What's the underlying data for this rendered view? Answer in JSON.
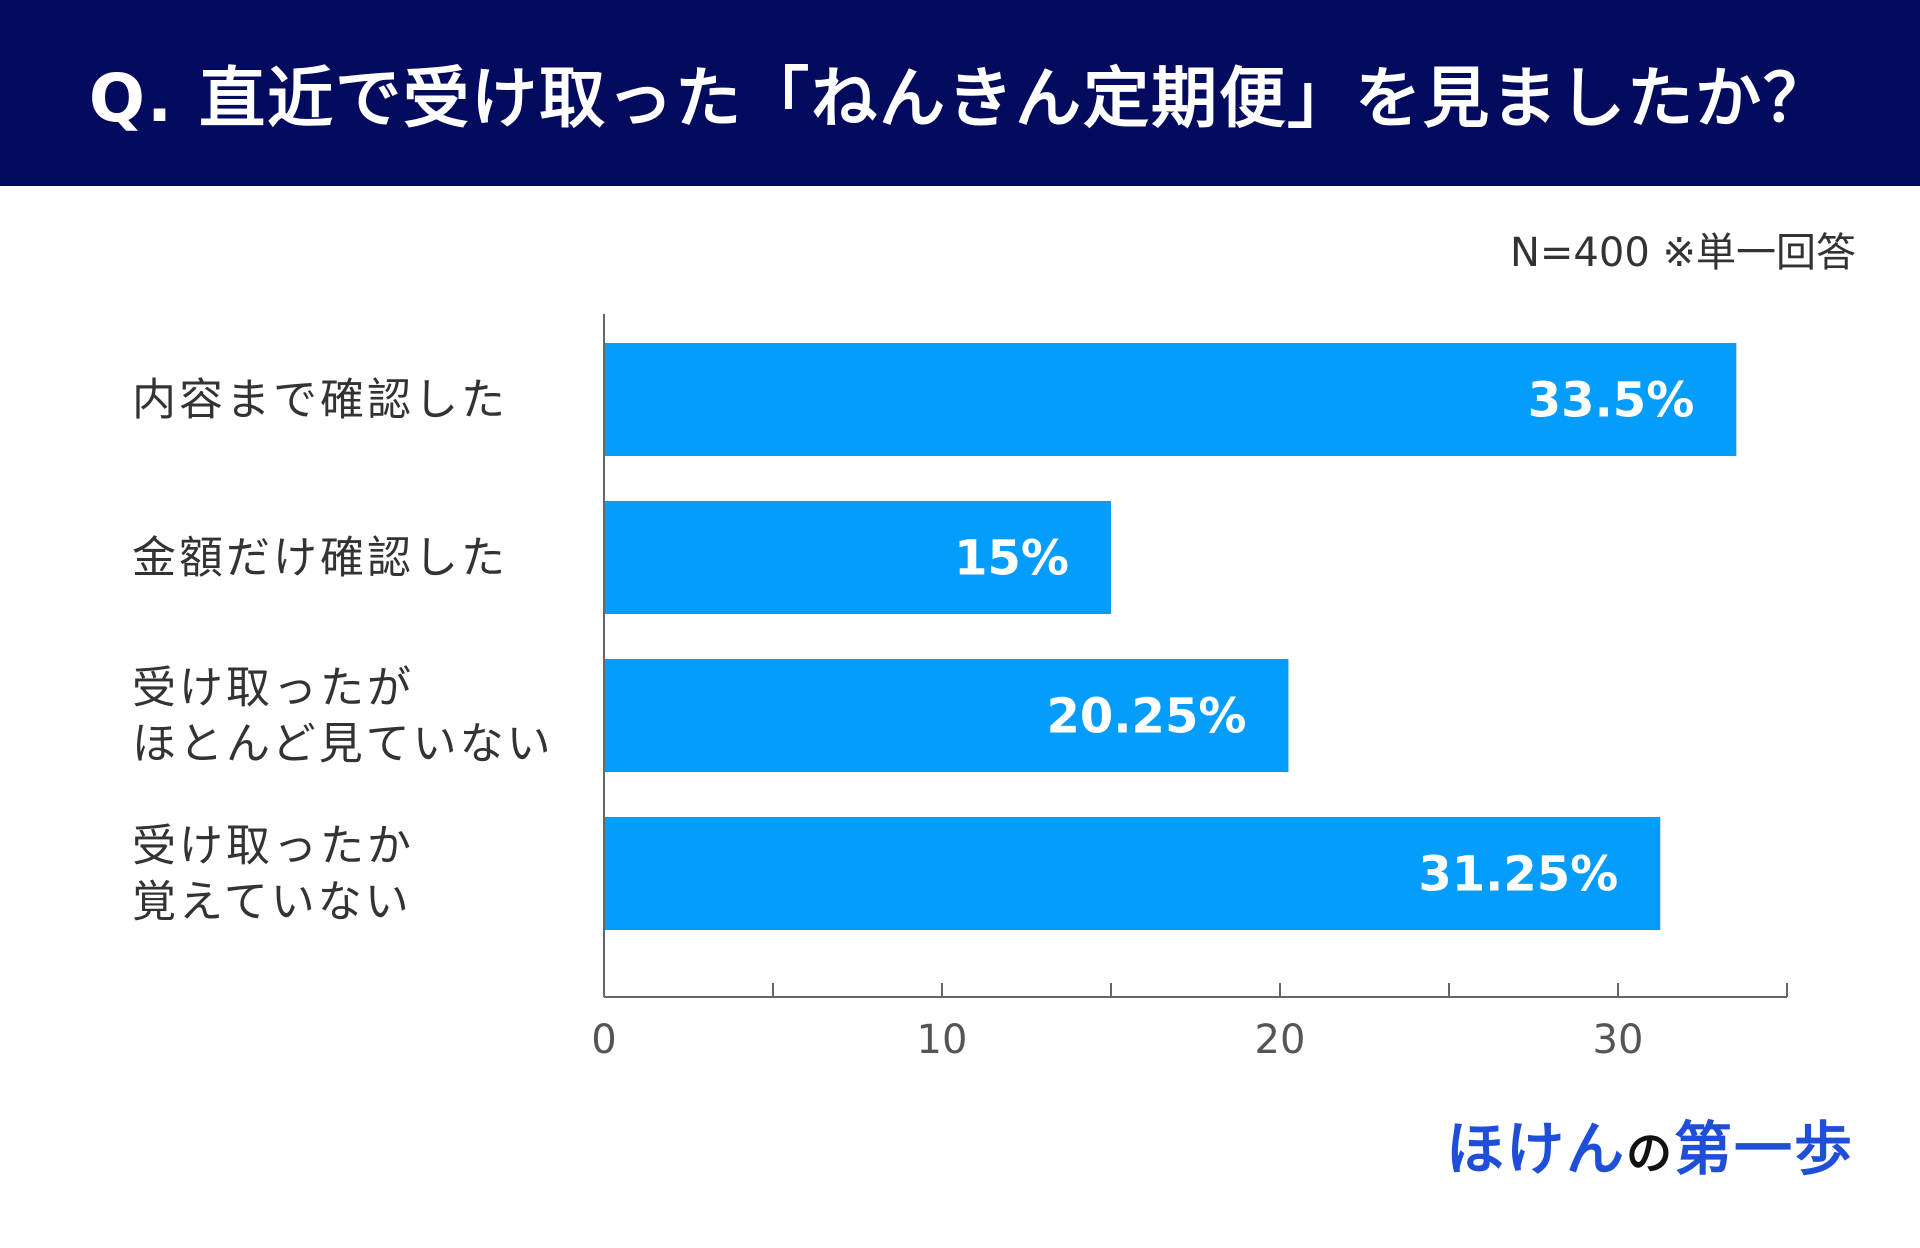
{
  "header": {
    "title": "Q. 直近で受け取った「ねんきん定期便」を見ましたか？"
  },
  "note": "N=400 ※単一回答",
  "brand": {
    "part1": "ほけん",
    "part2": "の",
    "part3": "第一歩"
  },
  "colors": {
    "header_bg": "#030b5e",
    "bar": "#049dfb",
    "brand": "#1f4fd8"
  },
  "chart_data": {
    "type": "bar",
    "orientation": "horizontal",
    "categories": [
      [
        "内容まで確認した"
      ],
      [
        "金額だけ確認した"
      ],
      [
        "受け取ったが",
        "ほとんど見ていない"
      ],
      [
        "受け取ったか",
        "覚えていない"
      ]
    ],
    "values": [
      33.5,
      15,
      20.25,
      31.25
    ],
    "value_labels": [
      "33.5%",
      "15%",
      "20.25%",
      "31.25%"
    ],
    "xlim": [
      0,
      35
    ],
    "major_ticks": [
      0,
      10,
      20,
      30
    ],
    "minor_ticks": [
      5,
      15,
      25,
      35
    ],
    "grid": false,
    "legend": "none"
  }
}
